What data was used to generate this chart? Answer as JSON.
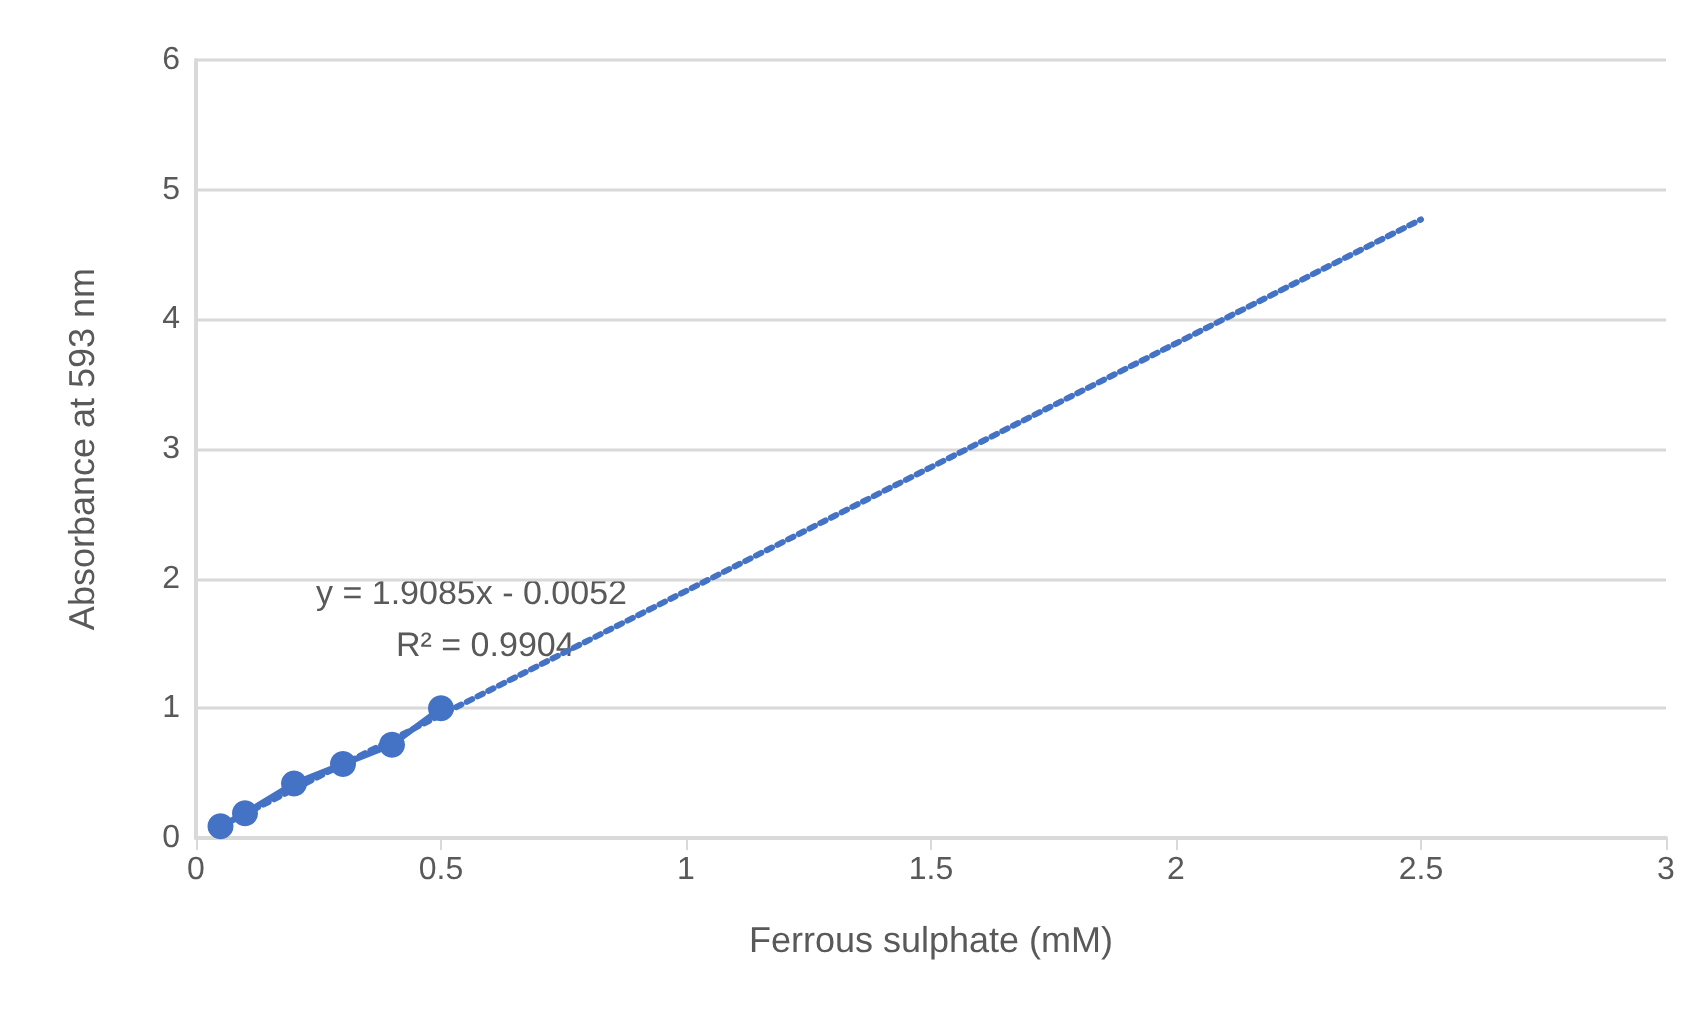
{
  "chart_data": {
    "type": "line",
    "xlabel": "Ferrous sulphate (mM)",
    "ylabel": "Absorbance at 593 nm",
    "xlim": [
      0,
      3
    ],
    "xticks": [
      0,
      0.5,
      1,
      1.5,
      2,
      2.5,
      3
    ],
    "ylim": [
      0,
      6
    ],
    "yticks": [
      0,
      1,
      2,
      3,
      4,
      5,
      6
    ],
    "grid": "y",
    "series": [
      {
        "color": "#4472c4",
        "marker": "circle",
        "line_style": "solid",
        "x": [
          0.05,
          0.1,
          0.2,
          0.3,
          0.4,
          0.5
        ],
        "values": [
          0.09,
          0.19,
          0.42,
          0.57,
          0.72,
          1.0
        ]
      },
      {
        "color": "#4472c4",
        "marker": "none",
        "line_style": "dotted",
        "x": [
          0.05,
          2.5
        ],
        "values": [
          0.09,
          4.77
        ]
      }
    ],
    "annotations": [
      "y = 1.9085x - 0.0052",
      "R² = 0.9904"
    ]
  }
}
